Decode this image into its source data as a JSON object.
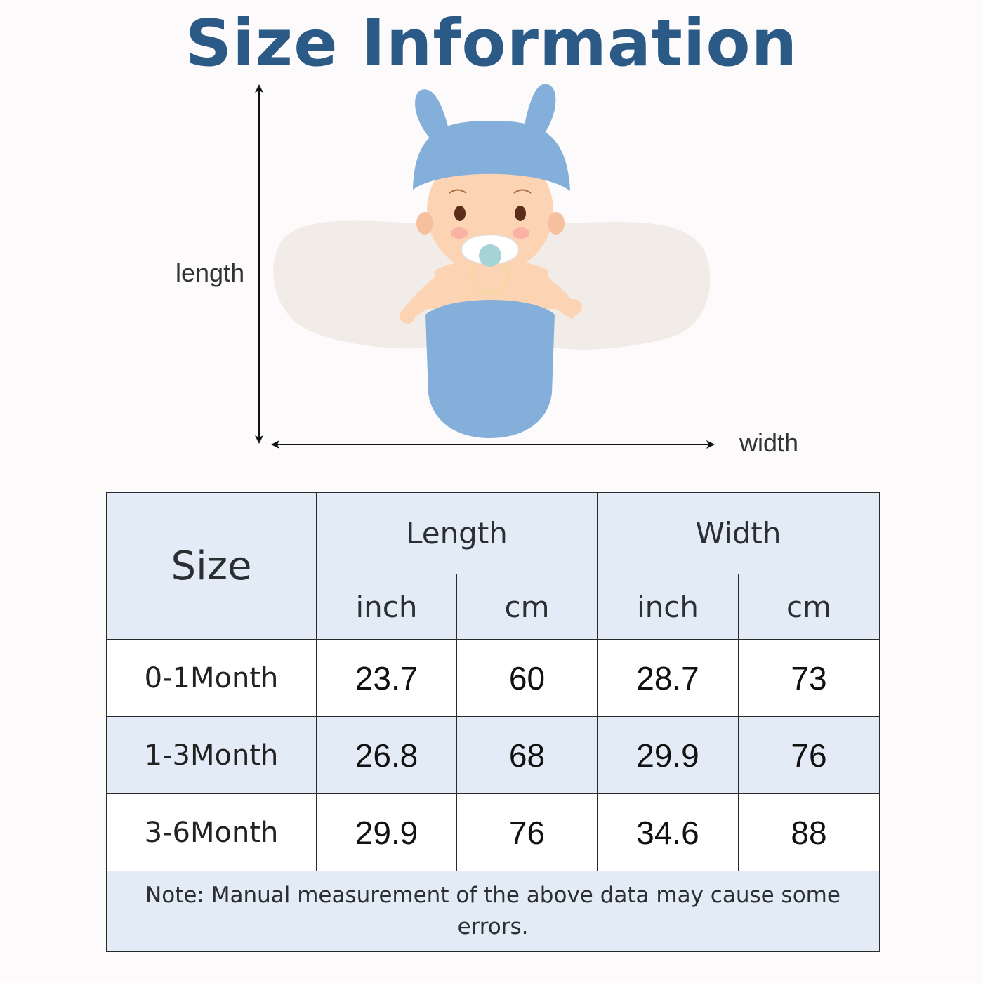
{
  "title": "Size Information",
  "diagram": {
    "length_label": "length",
    "width_label": "width"
  },
  "table": {
    "header": {
      "size": "Size",
      "length": "Length",
      "width": "Width",
      "units": [
        "inch",
        "cm",
        "inch",
        "cm"
      ]
    },
    "rows": [
      {
        "size": "0-1Month",
        "length_inch": "23.7",
        "length_cm": "60",
        "width_inch": "28.7",
        "width_cm": "73"
      },
      {
        "size": "1-3Month",
        "length_inch": "26.8",
        "length_cm": "68",
        "width_inch": "29.9",
        "width_cm": "76"
      },
      {
        "size": "3-6Month",
        "length_inch": "29.9",
        "length_cm": "76",
        "width_inch": "34.6",
        "width_cm": "88"
      }
    ],
    "note": "Note: Manual measurement of the above data may cause some errors."
  },
  "colors": {
    "title": "#2b5a86",
    "header_fill": "#e2ebf6",
    "swaddle_blue": "#84afdb",
    "blanket": "#f1ece7"
  }
}
